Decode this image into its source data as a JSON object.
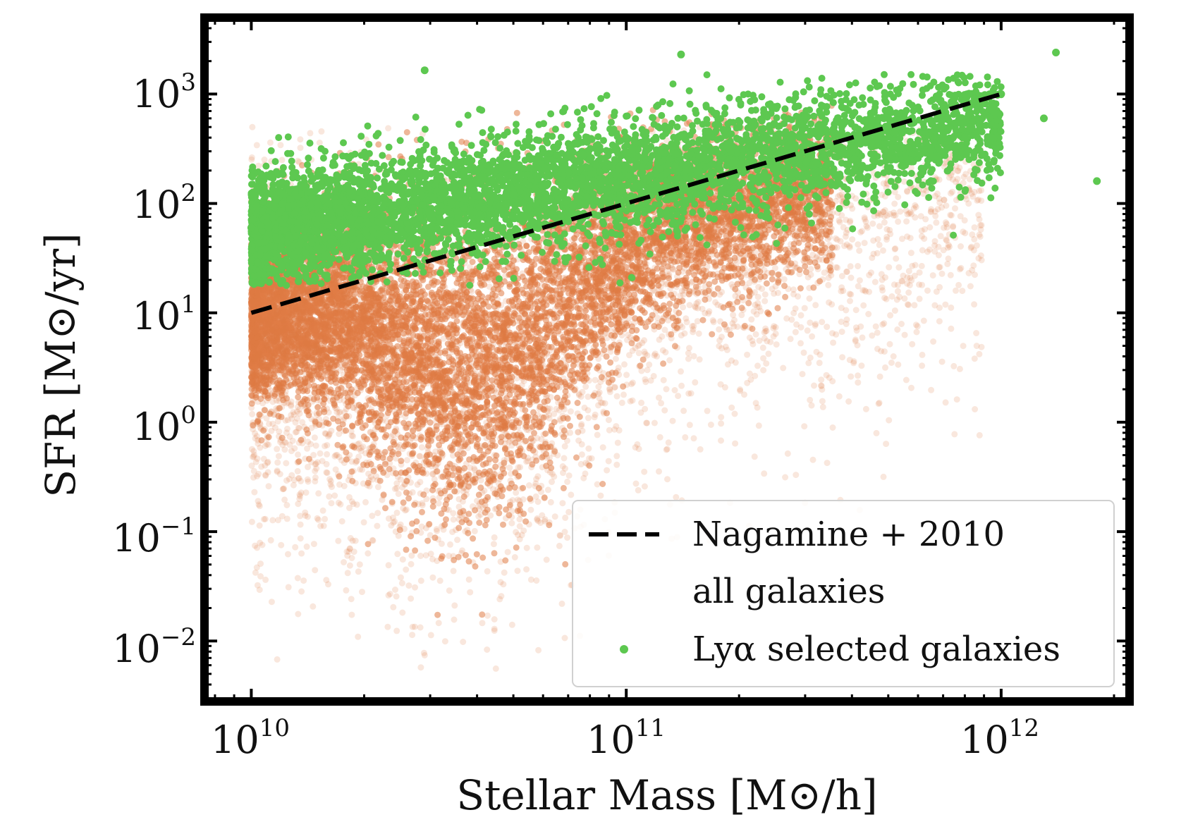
{
  "chart_data": {
    "type": "scatter",
    "title": "",
    "xlabel": "Stellar Mass [M⊙/h]",
    "ylabel": "SFR [M⊙/yr]",
    "xscale": "log",
    "yscale": "log",
    "xlim": [
      7500000000.0,
      2200000000000.0
    ],
    "ylim": [
      0.0028,
      5000
    ],
    "x_ticks": [
      {
        "value": 10000000000.0,
        "base": "10",
        "exp": "10"
      },
      {
        "value": 100000000000.0,
        "base": "10",
        "exp": "11"
      },
      {
        "value": 1000000000000.0,
        "base": "10",
        "exp": "12"
      }
    ],
    "y_ticks": [
      {
        "value": 0.01,
        "base": "10",
        "exp": "−2"
      },
      {
        "value": 0.1,
        "base": "10",
        "exp": "−1"
      },
      {
        "value": 1,
        "base": "10",
        "exp": "0"
      },
      {
        "value": 10,
        "base": "10",
        "exp": "1"
      },
      {
        "value": 100,
        "base": "10",
        "exp": "2"
      },
      {
        "value": 1000,
        "base": "10",
        "exp": "3"
      }
    ],
    "series": [
      {
        "name": "Nagamine + 2010",
        "kind": "line",
        "style": "dashed",
        "color": "#000000",
        "x": [
          10000000000.0,
          1000000000000.0
        ],
        "y": [
          10,
          1000
        ]
      },
      {
        "name": "all galaxies",
        "kind": "scatter",
        "color": "#e07b45",
        "description": "dense cloud of ~10^5 galaxies, mass range 1e10-1e12, SFR range 0.005-300",
        "points": [
          [
            10000000000.0,
            5
          ],
          [
            15000000000.0,
            3
          ],
          [
            20000000000.0,
            0.05
          ],
          [
            25000000000.0,
            0.3
          ],
          [
            30000000000.0,
            1.5
          ],
          [
            40000000000.0,
            0.8
          ],
          [
            50000000000.0,
            0.2
          ],
          [
            60000000000.0,
            2
          ],
          [
            80000000000.0,
            5
          ],
          [
            100000000000.0,
            8
          ],
          [
            150000000000.0,
            20
          ],
          [
            200000000000.0,
            30
          ],
          [
            300000000000.0,
            40
          ],
          [
            500000000000.0,
            60
          ],
          [
            800000000000.0,
            80
          ]
        ]
      },
      {
        "name": "Lyα selected galaxies",
        "kind": "scatter",
        "color": "#5dc850",
        "description": "upper envelope of the distribution, SFR ~ 20-1000",
        "points": [
          [
            10000000000.0,
            60
          ],
          [
            12000000000.0,
            40
          ],
          [
            15000000000.0,
            100
          ],
          [
            20000000000.0,
            150
          ],
          [
            29000000000.0,
            1650
          ],
          [
            30000000000.0,
            80
          ],
          [
            40000000000.0,
            200
          ],
          [
            50000000000.0,
            120
          ],
          [
            60000000000.0,
            300
          ],
          [
            80000000000.0,
            250
          ],
          [
            100000000000.0,
            400
          ],
          [
            140000000000.0,
            2300
          ],
          [
            200000000000.0,
            500
          ],
          [
            300000000000.0,
            300
          ],
          [
            500000000000.0,
            600
          ],
          [
            800000000000.0,
            400
          ],
          [
            1000000000000.0,
            1000
          ],
          [
            1300000000000.0,
            600
          ],
          [
            1400000000000.0,
            2400
          ],
          [
            1800000000000.0,
            160
          ]
        ]
      }
    ],
    "legend": {
      "position": "lower-right",
      "entries": [
        {
          "label": "Nagamine + 2010",
          "marker": "dashed-line"
        },
        {
          "label": "all galaxies",
          "marker": "none"
        },
        {
          "label": "Lyα selected galaxies",
          "marker": "green-dot"
        }
      ]
    }
  }
}
